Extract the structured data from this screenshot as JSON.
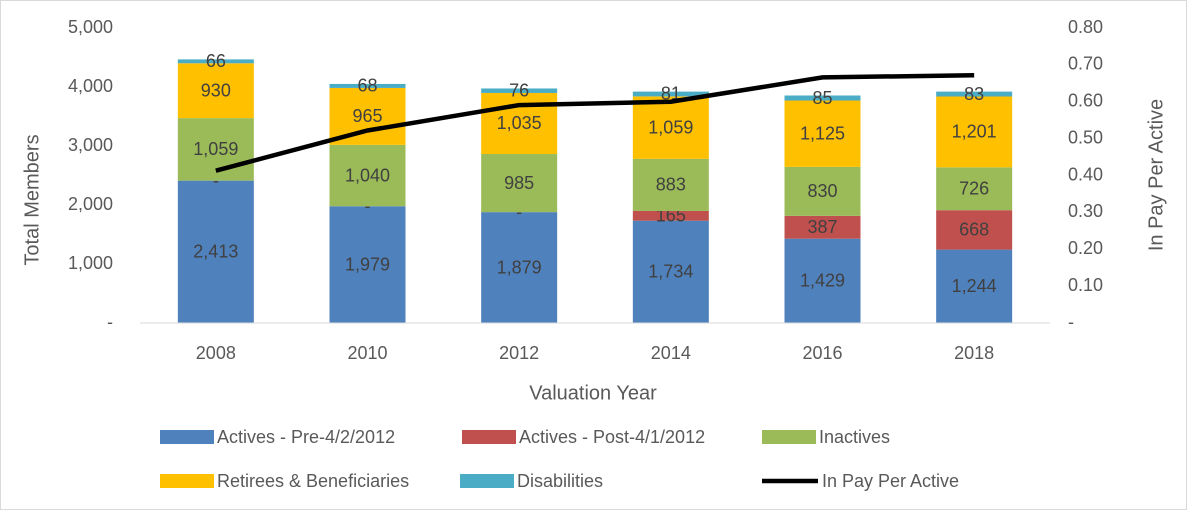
{
  "chart_data": {
    "type": "bar",
    "stacked": true,
    "xlabel": "Valuation Year",
    "ylabel": "Total Members",
    "y2label": "In Pay Per Active",
    "categories": [
      "2008",
      "2010",
      "2012",
      "2014",
      "2016",
      "2018"
    ],
    "series": [
      {
        "name": "Actives - Pre-4/2/2012",
        "color": "#4f81bd",
        "values": [
          2413,
          1979,
          1879,
          1734,
          1429,
          1244
        ],
        "value_labels": [
          "2,413",
          "1,979",
          "1,879",
          "1,734",
          "1,429",
          "1,244"
        ]
      },
      {
        "name": "Actives - Post-4/1/2012",
        "color": "#c0504d",
        "values": [
          0,
          0,
          0,
          165,
          387,
          668
        ],
        "value_labels": [
          "-",
          "-",
          "-",
          "165",
          "387",
          "668"
        ]
      },
      {
        "name": "Inactives",
        "color": "#9bbb59",
        "values": [
          1059,
          1040,
          985,
          883,
          830,
          726
        ],
        "value_labels": [
          "1,059",
          "1,040",
          "985",
          "883",
          "830",
          "726"
        ]
      },
      {
        "name": "Retirees & Beneficiaries",
        "color": "#ffc000",
        "values": [
          930,
          965,
          1035,
          1059,
          1125,
          1201
        ],
        "value_labels": [
          "930",
          "965",
          "1,035",
          "1,059",
          "1,125",
          "1,201"
        ]
      },
      {
        "name": "Disabilities",
        "color": "#4bacc6",
        "values": [
          66,
          68,
          76,
          81,
          85,
          83
        ]
      },
      {
        "name": "In Pay Per Active",
        "type": "line",
        "axis": "y2",
        "color": "#000000",
        "values": [
          0.413,
          0.522,
          0.591,
          0.6,
          0.666,
          0.672
        ]
      }
    ],
    "ylim": [
      0,
      5000
    ],
    "yticks": [
      {
        "value": 0,
        "label": "-"
      },
      {
        "value": 1000,
        "label": "1,000"
      },
      {
        "value": 2000,
        "label": "2,000"
      },
      {
        "value": 3000,
        "label": "3,000"
      },
      {
        "value": 4000,
        "label": "4,000"
      },
      {
        "value": 5000,
        "label": "5,000"
      }
    ],
    "y2lim": [
      0,
      0.8
    ],
    "y2ticks": [
      {
        "value": 0,
        "label": "-"
      },
      {
        "value": 0.1,
        "label": "0.10"
      },
      {
        "value": 0.2,
        "label": "0.20"
      },
      {
        "value": 0.3,
        "label": "0.30"
      },
      {
        "value": 0.4,
        "label": "0.40"
      },
      {
        "value": 0.5,
        "label": "0.50"
      },
      {
        "value": 0.6,
        "label": "0.60"
      },
      {
        "value": 0.7,
        "label": "0.70"
      },
      {
        "value": 0.8,
        "label": "0.80"
      }
    ],
    "grid": false,
    "legend": "bottom"
  }
}
